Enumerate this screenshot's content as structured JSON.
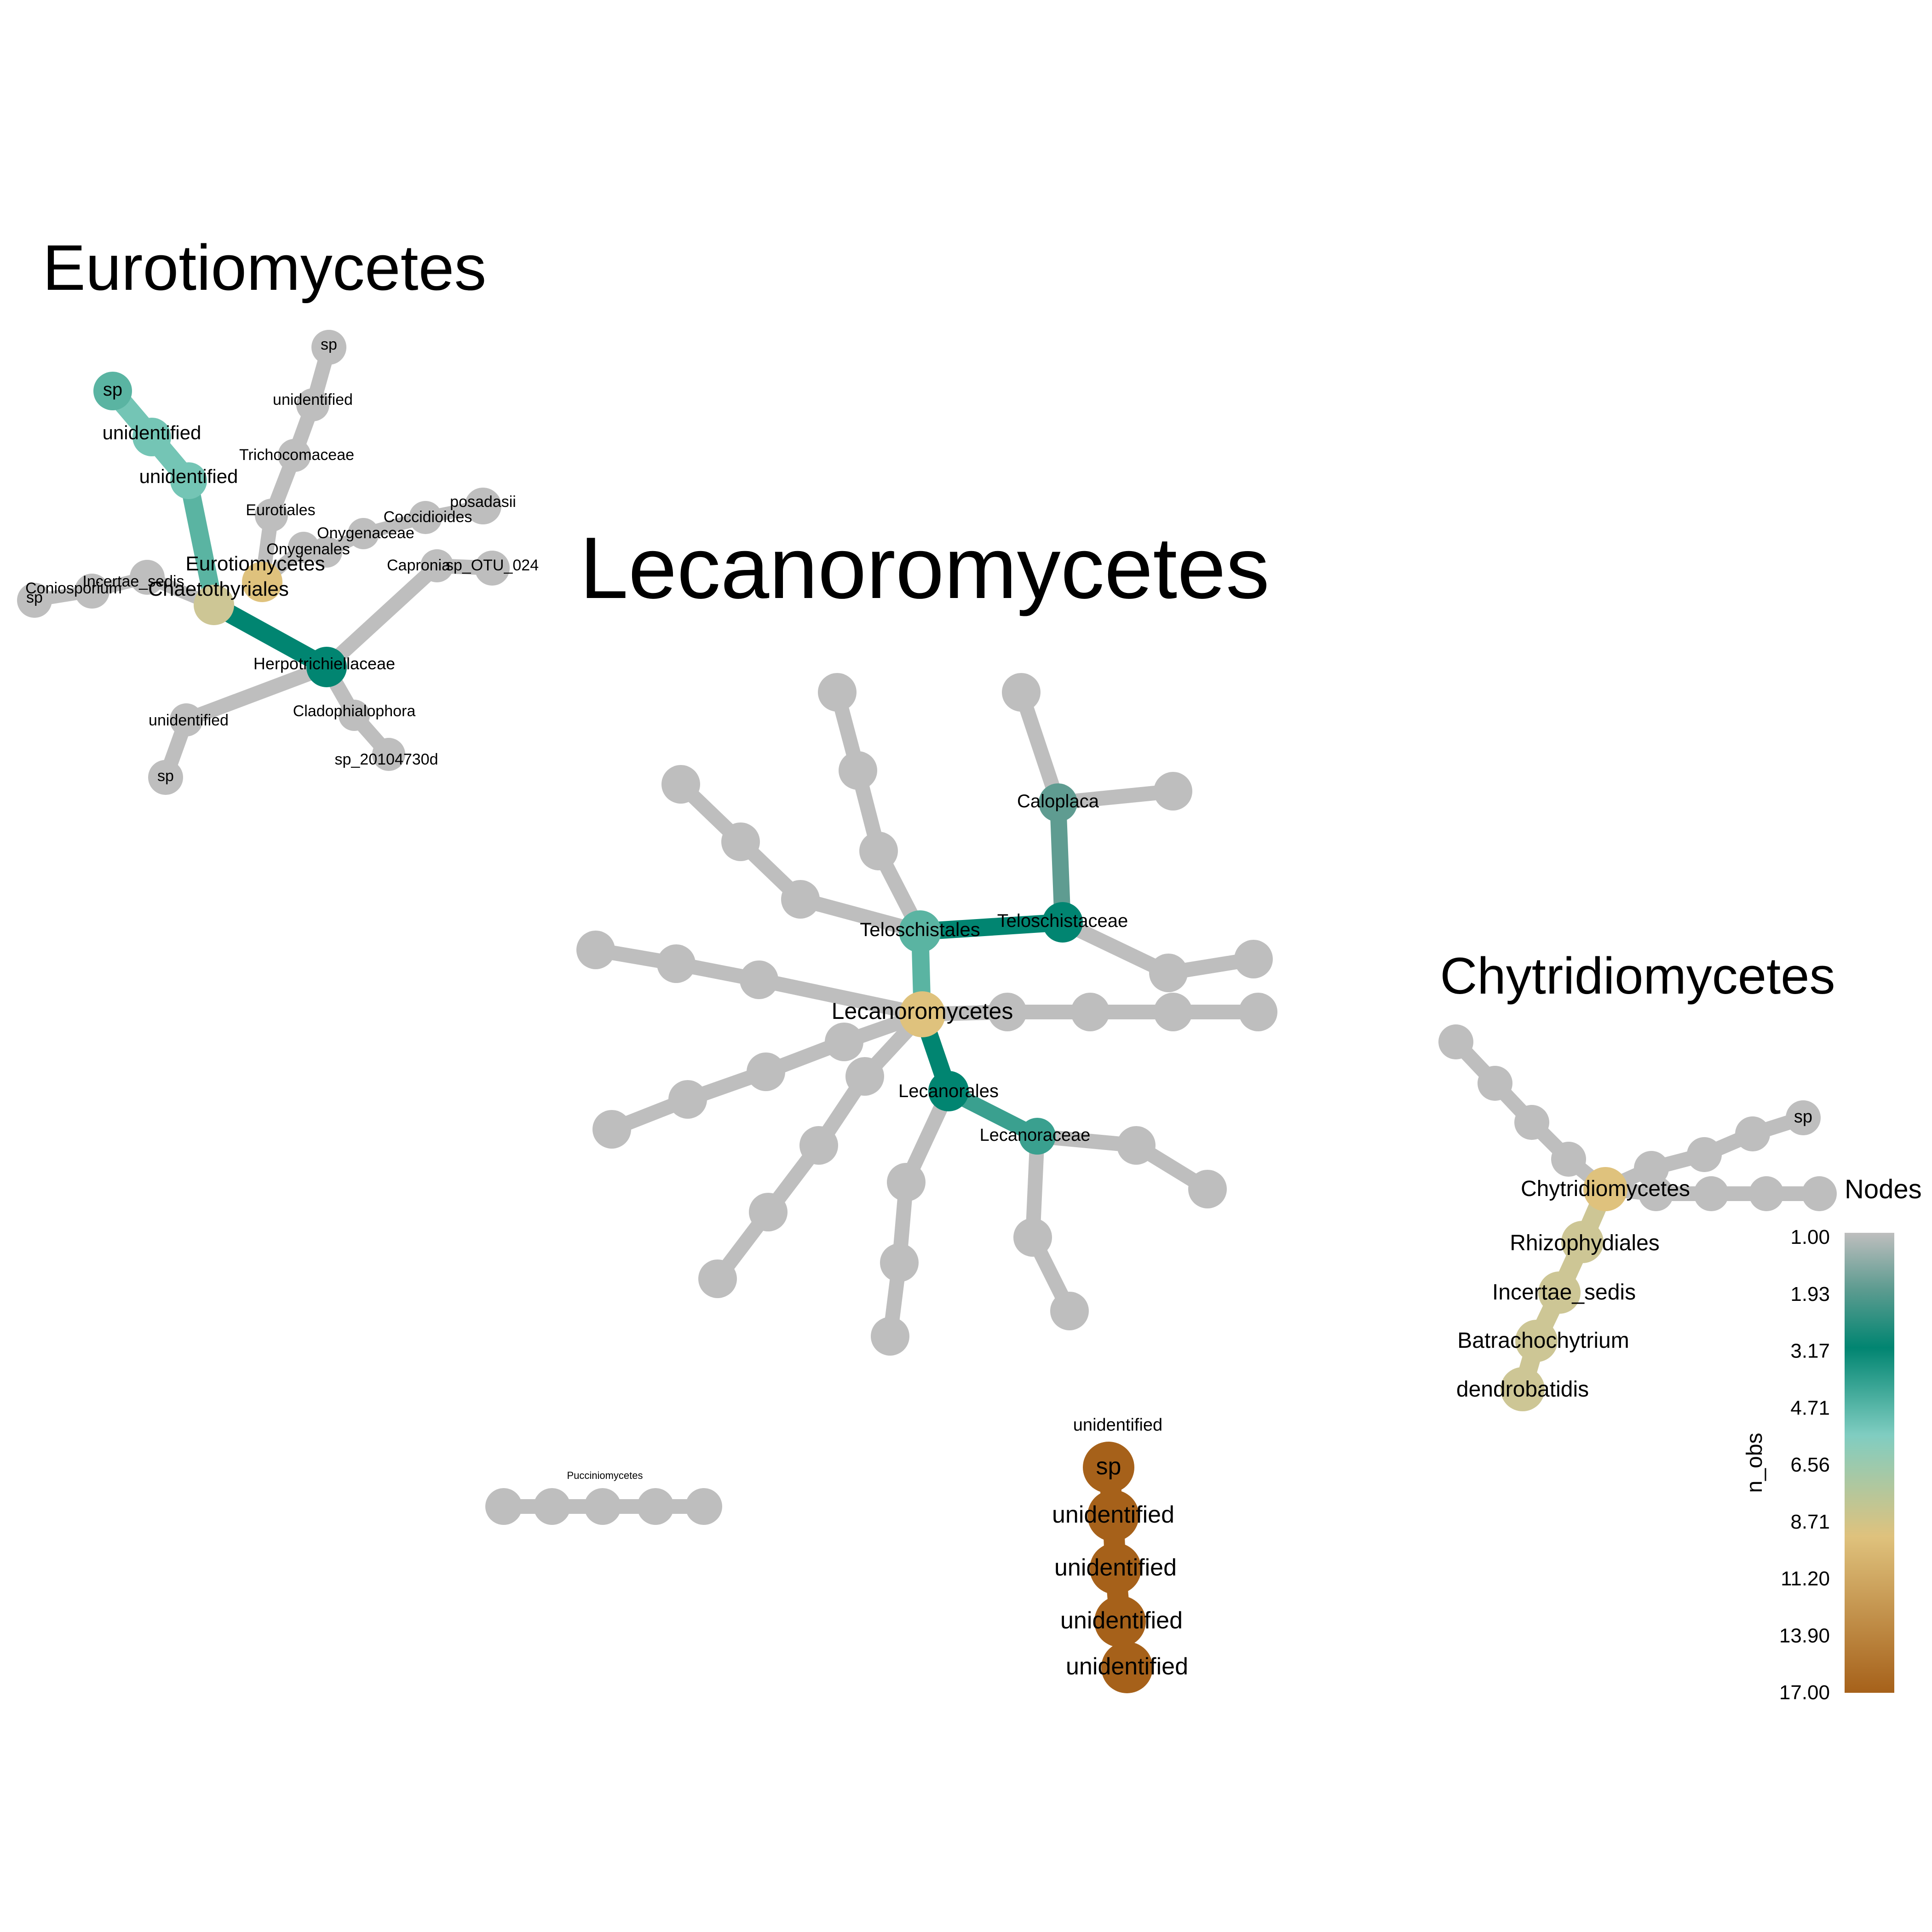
{
  "colors": {
    "gray": "#bebebe",
    "scale": [
      "#bebebe",
      "#5f9c91",
      "#018571",
      "#80cdc1",
      "#dfc27d",
      "#a6611a"
    ]
  },
  "legend": {
    "title": "Nodes",
    "axis_title": "n_obs",
    "tick_labels": [
      "1.00",
      "1.93",
      "3.17",
      "4.71",
      "6.56",
      "8.71",
      "11.20",
      "13.90",
      "17.00"
    ]
  },
  "groups": {
    "eurotiomycetes": {
      "title": "Eurotiomycetes",
      "labels": [
        "sp",
        "unidentified",
        "unidentified",
        "unidentified",
        "sp",
        "Trichocomaceae",
        "Eurotiales",
        "Onygenales",
        "Onygenaceae",
        "Coccidioides",
        "posadasii",
        "Capronia",
        "sp_OTU_024",
        "Eurotiomycetes",
        "Chaetothyriales",
        "Incertae_sedis",
        "Coniosporium",
        "sp",
        "Herpotrichiellaceae",
        "Cladophialophora",
        "sp_20104730d",
        "unidentified",
        "sp"
      ]
    },
    "lecanoromycetes": {
      "title": "Lecanoromycetes",
      "labels": [
        "Lecanoromycetes",
        "Teloschistales",
        "Teloschistaceae",
        "Caloplaca",
        "Lecanorales",
        "Lecanoraceae"
      ]
    },
    "chytridiomycetes": {
      "title": "Chytridiomycetes",
      "labels": [
        "Chytridiomycetes",
        "Rhizophydiales",
        "Incertae_sedis",
        "Batrachochytrium",
        "dendrobatidis",
        "sp"
      ]
    },
    "pucciniomycetes": {
      "title": "Pucciniomycetes",
      "labels": []
    },
    "unlabeled": {
      "title": "",
      "labels": [
        "unidentified",
        "sp",
        "unidentified",
        "unidentified",
        "unidentified",
        "unidentified"
      ]
    }
  }
}
